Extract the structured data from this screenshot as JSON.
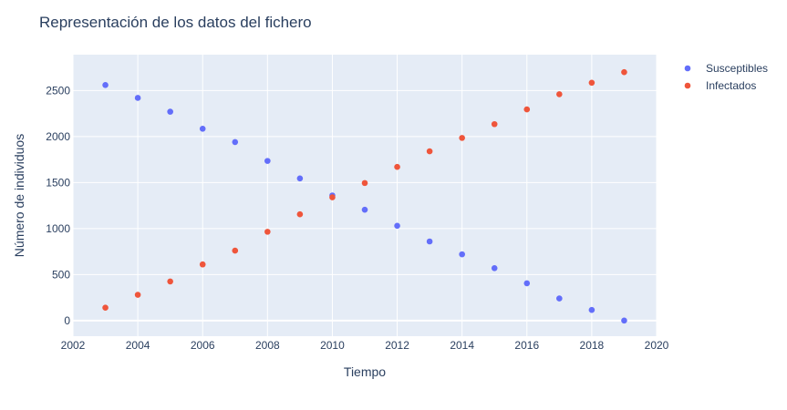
{
  "chart_data": {
    "type": "scatter",
    "title": "Representación de los datos del fichero",
    "xlabel": "Tiempo",
    "ylabel": "Número de individuos",
    "xlim": [
      2002,
      2020
    ],
    "ylim": [
      -170,
      2890
    ],
    "xticks": [
      "2002",
      "2004",
      "2006",
      "2008",
      "2010",
      "2012",
      "2014",
      "2016",
      "2018",
      "2020"
    ],
    "yticks": [
      "0",
      "500",
      "1000",
      "1500",
      "2000",
      "2500"
    ],
    "grid": true,
    "legend_position": "top-right",
    "x": [
      2003,
      2004,
      2005,
      2006,
      2007,
      2008,
      2009,
      2010,
      2011,
      2012,
      2013,
      2014,
      2015,
      2016,
      2017,
      2018,
      2019
    ],
    "series": [
      {
        "name": "Susceptibles",
        "color": "#636efa",
        "values": [
          2560,
          2420,
          2270,
          2085,
          1940,
          1735,
          1545,
          1360,
          1205,
          1030,
          860,
          720,
          570,
          405,
          240,
          115,
          0
        ]
      },
      {
        "name": "Infectados",
        "color": "#ef553b",
        "values": [
          140,
          280,
          425,
          610,
          760,
          965,
          1155,
          1340,
          1495,
          1670,
          1840,
          1985,
          2135,
          2295,
          2460,
          2585,
          2700
        ]
      }
    ]
  }
}
